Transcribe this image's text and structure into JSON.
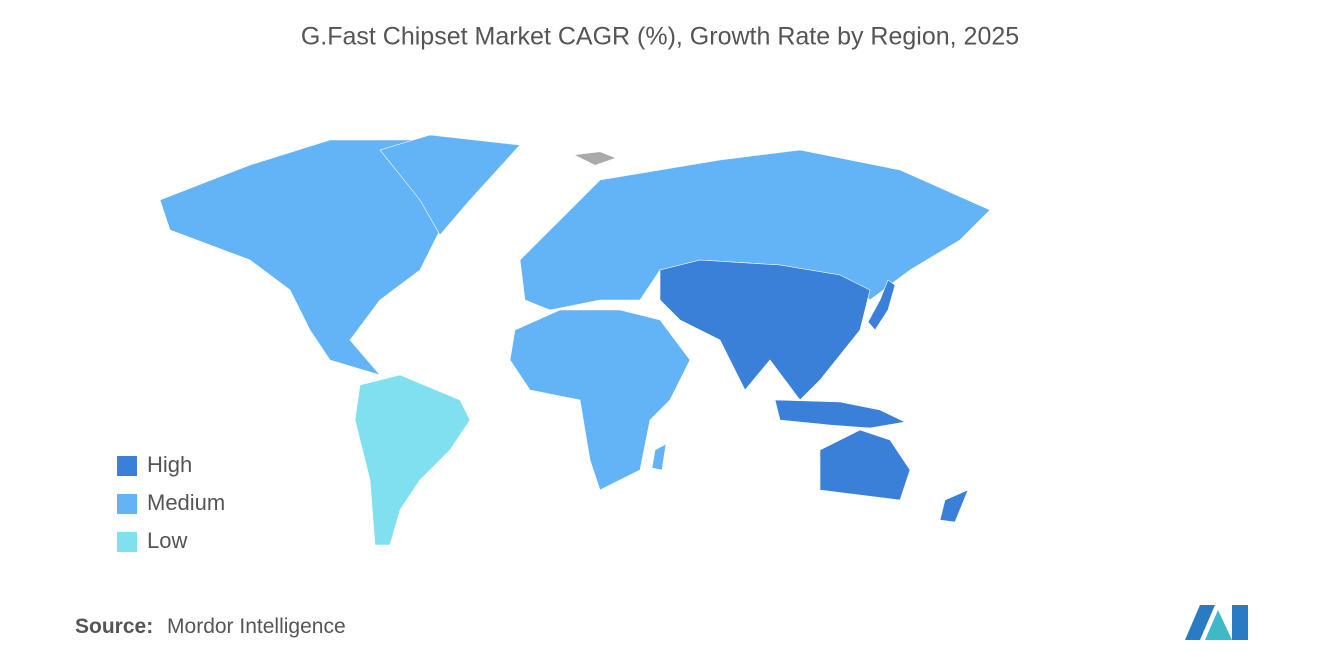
{
  "header": {
    "title": "G.Fast Chipset Market CAGR (%), Growth Rate by Region, 2025"
  },
  "legend": [
    {
      "label": "High",
      "color": "#3a80d9"
    },
    {
      "label": "Medium",
      "color": "#63b3f7"
    },
    {
      "label": "Low",
      "color": "#7fe0ef"
    }
  ],
  "footer": {
    "source_label": "Source:",
    "source": "Mordor Intelligence"
  }
}
